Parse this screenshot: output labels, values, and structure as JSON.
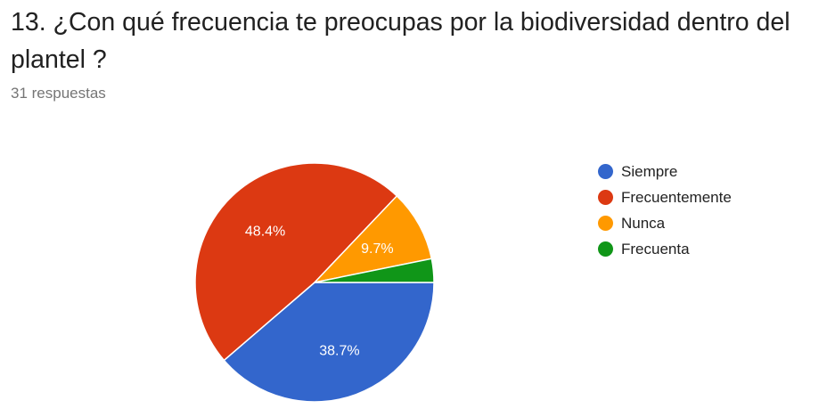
{
  "question": {
    "title": "13. ¿Con qué frecuencia te preocupas por la biodiversidad dentro del plantel ?",
    "responses": "31 respuestas"
  },
  "chart_data": {
    "type": "pie",
    "categories": [
      "Siempre",
      "Frecuentemente",
      "Nunca",
      "Frecuenta"
    ],
    "values": [
      38.7,
      48.4,
      9.7,
      3.2
    ],
    "counts": [
      12,
      15,
      3,
      1
    ],
    "labels": [
      "38.7%",
      "48.4%",
      "9.7%",
      ""
    ],
    "colors": [
      "#3366cc",
      "#dc3912",
      "#ff9900",
      "#109618"
    ],
    "legend_position": "right"
  }
}
